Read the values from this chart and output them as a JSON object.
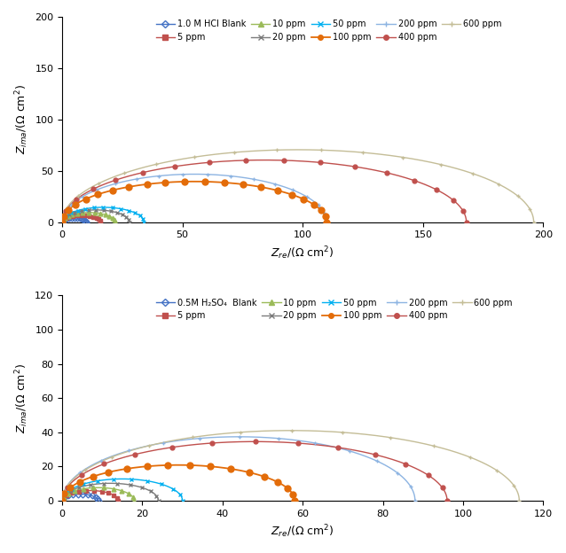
{
  "hcl": {
    "xlim": [
      0,
      200
    ],
    "ylim": [
      0,
      200
    ],
    "xticks": [
      0,
      50,
      100,
      150,
      200
    ],
    "yticks": [
      0,
      50,
      100,
      150,
      200
    ],
    "series": [
      {
        "label": "1.0 M HCl Blank",
        "x0": 0,
        "x1": 10,
        "depress": 0.85,
        "color": "#4472C4",
        "marker": "D",
        "ms": 3.5,
        "lw": 1.0,
        "dots": false,
        "n_mark": 15
      },
      {
        "label": "5 ppm",
        "x0": 0,
        "x1": 16,
        "depress": 0.85,
        "color": "#C0504D",
        "marker": "s",
        "ms": 3.5,
        "lw": 1.0,
        "dots": false,
        "n_mark": 15
      },
      {
        "label": "10 ppm",
        "x0": 0,
        "x1": 22,
        "depress": 0.85,
        "color": "#9BBB59",
        "marker": "^",
        "ms": 3.5,
        "lw": 1.0,
        "dots": false,
        "n_mark": 15
      },
      {
        "label": "20 ppm",
        "x0": 0,
        "x1": 28,
        "depress": 0.85,
        "color": "#7B7B7B",
        "marker": "x",
        "ms": 3.5,
        "lw": 1.0,
        "dots": false,
        "n_mark": 15
      },
      {
        "label": "50 ppm",
        "x0": 0,
        "x1": 34,
        "depress": 0.85,
        "color": "#00B0F0",
        "marker": "x",
        "ms": 3.5,
        "lw": 1.0,
        "dots": false,
        "n_mark": 15
      },
      {
        "label": "100 ppm",
        "x0": 0,
        "x1": 110,
        "depress": 0.72,
        "color": "#E36C09",
        "marker": "o",
        "ms": 5.0,
        "lw": 1.3,
        "dots": true,
        "n_mark": 22
      },
      {
        "label": "200 ppm",
        "x0": 0,
        "x1": 110,
        "depress": 0.85,
        "color": "#8DB4E2",
        "marker": "+",
        "ms": 3.5,
        "lw": 1.0,
        "dots": false,
        "n_mark": 18
      },
      {
        "label": "400 ppm",
        "x0": 0,
        "x1": 168,
        "depress": 0.72,
        "color": "#C0504D",
        "marker": "o",
        "ms": 3.5,
        "lw": 1.0,
        "dots": false,
        "n_mark": 18
      },
      {
        "label": "600 ppm",
        "x0": 0,
        "x1": 196,
        "depress": 0.72,
        "color": "#C4BD97",
        "marker": "+",
        "ms": 3.5,
        "lw": 1.0,
        "dots": false,
        "n_mark": 18
      }
    ]
  },
  "h2so4": {
    "xlim": [
      0,
      120
    ],
    "ylim": [
      0,
      120
    ],
    "xticks": [
      0,
      20,
      40,
      60,
      80,
      100,
      120
    ],
    "yticks": [
      0,
      20,
      40,
      60,
      80,
      100,
      120
    ],
    "series": [
      {
        "label": "0.5M H₂SO₄  Blank",
        "x0": 0,
        "x1": 9,
        "depress": 0.85,
        "color": "#4472C4",
        "marker": "D",
        "ms": 3.5,
        "lw": 1.0,
        "dots": false,
        "n_mark": 12
      },
      {
        "label": "5 ppm",
        "x0": 0,
        "x1": 14,
        "depress": 0.85,
        "color": "#C0504D",
        "marker": "s",
        "ms": 3.5,
        "lw": 1.0,
        "dots": false,
        "n_mark": 12
      },
      {
        "label": "10 ppm",
        "x0": 0,
        "x1": 18,
        "depress": 0.85,
        "color": "#9BBB59",
        "marker": "^",
        "ms": 3.5,
        "lw": 1.0,
        "dots": false,
        "n_mark": 12
      },
      {
        "label": "20 ppm",
        "x0": 0,
        "x1": 24,
        "depress": 0.85,
        "color": "#7B7B7B",
        "marker": "x",
        "ms": 3.5,
        "lw": 1.0,
        "dots": false,
        "n_mark": 12
      },
      {
        "label": "50 ppm",
        "x0": 0,
        "x1": 30,
        "depress": 0.85,
        "color": "#00B0F0",
        "marker": "x",
        "ms": 3.5,
        "lw": 1.0,
        "dots": false,
        "n_mark": 12
      },
      {
        "label": "100 ppm",
        "x0": 0,
        "x1": 58,
        "depress": 0.72,
        "color": "#E36C09",
        "marker": "o",
        "ms": 5.0,
        "lw": 1.3,
        "dots": true,
        "n_mark": 18
      },
      {
        "label": "200 ppm",
        "x0": 0,
        "x1": 88,
        "depress": 0.85,
        "color": "#8DB4E2",
        "marker": "+",
        "ms": 3.5,
        "lw": 1.0,
        "dots": false,
        "n_mark": 15
      },
      {
        "label": "400 ppm",
        "x0": 0,
        "x1": 96,
        "depress": 0.72,
        "color": "#C0504D",
        "marker": "o",
        "ms": 3.5,
        "lw": 1.0,
        "dots": false,
        "n_mark": 15
      },
      {
        "label": "600 ppm",
        "x0": 0,
        "x1": 114,
        "depress": 0.72,
        "color": "#C4BD97",
        "marker": "+",
        "ms": 3.5,
        "lw": 1.0,
        "dots": false,
        "n_mark": 15
      }
    ]
  }
}
